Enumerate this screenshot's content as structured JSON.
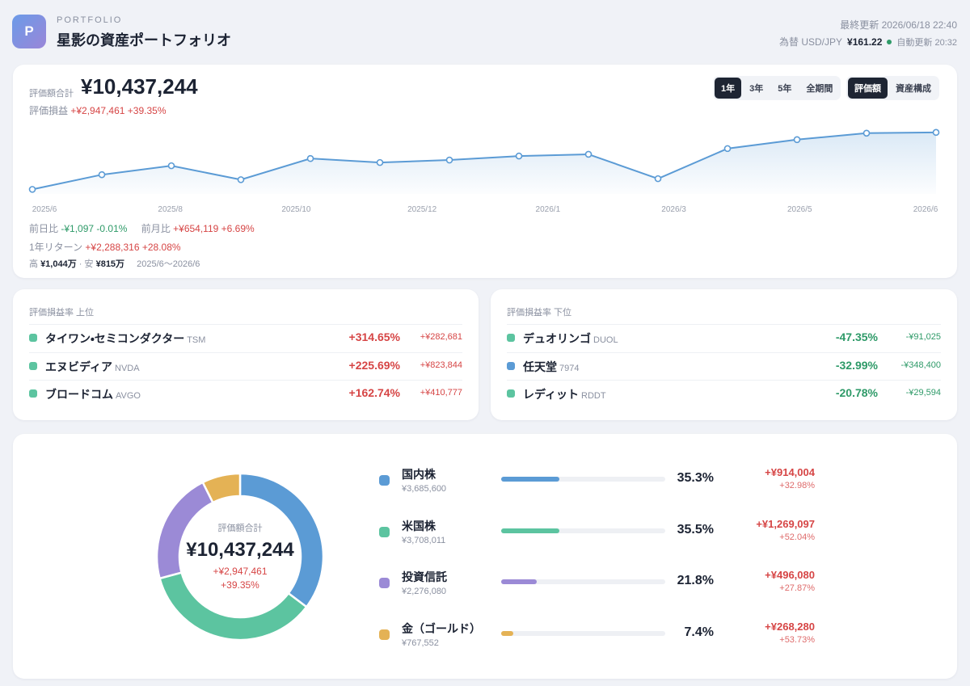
{
  "header": {
    "badge": "P",
    "eyebrow": "PORTFOLIO",
    "title": "星影の資産ポートフォリオ",
    "updated": "最終更新 2026/06/18 22:40",
    "fx_label": "為替 USD/JPY",
    "fx_value": "¥161.22",
    "auto": "自動更新 20:32"
  },
  "summary": {
    "label": "評価額合計",
    "total": "¥10,437,244",
    "pl_label": "評価損益",
    "pl_amount": "+¥2,947,461",
    "pl_pct": "+39.35%",
    "ranges": [
      "1年",
      "3年",
      "5年",
      "全期間"
    ],
    "active_range": 0,
    "views": [
      "評価額",
      "資産構成"
    ],
    "active_view": 0
  },
  "stats": {
    "day_label": "前日比",
    "day_amount": "-¥1,097",
    "day_pct": "-0.01%",
    "month_label": "前月比",
    "month_amount": "+¥654,119",
    "month_pct": "+6.69%",
    "year_label": "1年リターン",
    "year_amount": "+¥2,288,316",
    "year_pct": "+28.08%",
    "high_label": "高",
    "high": "¥1,044万",
    "low_label": "安",
    "low": "¥815万",
    "period": "2025/6〜2026/6"
  },
  "chart_data": [
    {
      "type": "area",
      "x_labels": [
        "2025/6",
        "2025/8",
        "2025/10",
        "2025/12",
        "2026/1",
        "2026/3",
        "2026/5",
        "2026/6"
      ],
      "values": [
        815,
        874,
        910,
        854,
        939,
        923,
        933,
        949,
        956,
        858,
        979,
        1015,
        1041,
        1044
      ],
      "color": "#5b9bd5",
      "ylim": [
        800,
        1050
      ]
    },
    {
      "type": "pie",
      "categories": [
        "国内株",
        "米国株",
        "投資信託",
        "金（ゴールド）"
      ],
      "values": [
        35.3,
        35.5,
        21.8,
        7.4
      ],
      "value_labels": [
        "35.3%",
        "35.5%",
        "21.8%",
        "7.4%"
      ],
      "colors": [
        "#5b9bd5",
        "#5cc4a0",
        "#9b8ad6",
        "#e4b255"
      ]
    }
  ],
  "gainers": {
    "title": "評価損益率 上位",
    "rows": [
      {
        "name": "タイワン・セミコンダクター",
        "ticker": "TSM",
        "color": "#5cc4a0",
        "pct": "+314.65%",
        "amount": "+¥282,681"
      },
      {
        "name": "エヌビディア",
        "ticker": "NVDA",
        "color": "#5cc4a0",
        "pct": "+225.69%",
        "amount": "+¥823,844"
      },
      {
        "name": "ブロードコム",
        "ticker": "AVGO",
        "color": "#5cc4a0",
        "pct": "+162.74%",
        "amount": "+¥410,777"
      }
    ]
  },
  "losers": {
    "title": "評価損益率 下位",
    "rows": [
      {
        "name": "デュオリンゴ",
        "ticker": "DUOL",
        "color": "#5cc4a0",
        "pct": "-47.35%",
        "amount": "-¥91,025"
      },
      {
        "name": "任天堂",
        "ticker": "7974",
        "color": "#5b9bd5",
        "pct": "-32.99%",
        "amount": "-¥348,400"
      },
      {
        "name": "レディット",
        "ticker": "RDDT",
        "color": "#5cc4a0",
        "pct": "-20.78%",
        "amount": "-¥29,594"
      }
    ]
  },
  "allocation": {
    "rows": [
      {
        "amount": "¥3,685,600",
        "gain": "+¥914,004",
        "gain_pct": "+32.98%"
      },
      {
        "amount": "¥3,708,011",
        "gain": "+¥1,269,097",
        "gain_pct": "+52.04%"
      },
      {
        "amount": "¥2,276,080",
        "gain": "+¥496,080",
        "gain_pct": "+27.87%"
      },
      {
        "amount": "¥767,552",
        "gain": "+¥268,280",
        "gain_pct": "+53.73%"
      }
    ]
  }
}
